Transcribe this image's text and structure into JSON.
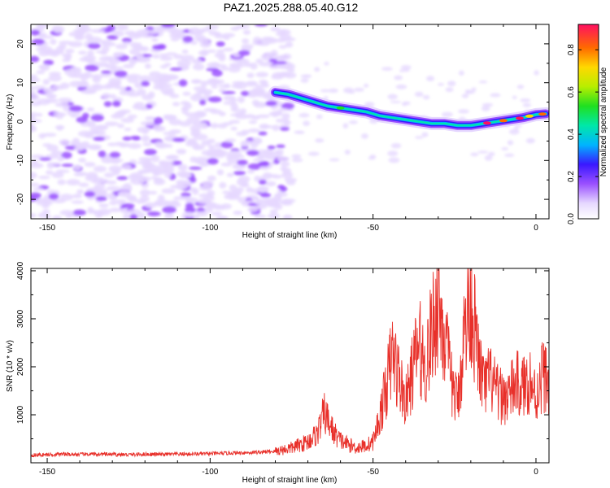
{
  "title": "PAZ1.2025.288.05.40.G12",
  "chart_data": [
    {
      "type": "heatmap",
      "xlabel": "Height of straight line (km)",
      "ylabel": "Frequency (Hz)",
      "xlim": [
        -155,
        4
      ],
      "ylim": [
        -25,
        25
      ],
      "xticks": [
        -150,
        -100,
        -50,
        0
      ],
      "xtick_labels": [
        "-150",
        "-100",
        "-50",
        "0"
      ],
      "yticks": [
        -20,
        -10,
        0,
        10,
        20
      ],
      "ytick_labels": [
        "-20",
        "-10",
        "0",
        "10",
        "20"
      ],
      "colorbar": {
        "label": "Normalized spectral amplitude",
        "range": [
          0,
          0.92
        ],
        "ticks": [
          0,
          0.2,
          0.4,
          0.6,
          0.8
        ],
        "tick_labels": [
          "0.0",
          "0.2",
          "0.4",
          "0.6",
          "0.8"
        ]
      },
      "ridge": {
        "name": "signal ridge",
        "x": [
          -80,
          -76,
          -72,
          -68,
          -64,
          -60,
          -56,
          -52,
          -48,
          -44,
          -40,
          -36,
          -32,
          -28,
          -24,
          -20,
          -16,
          -12,
          -8,
          -4,
          0,
          3
        ],
        "y": [
          7.5,
          7,
          6,
          5,
          4,
          3.5,
          3,
          2.5,
          1.5,
          1,
          0.5,
          0,
          -0.5,
          -0.5,
          -1,
          -1,
          -0.5,
          0,
          0.5,
          1,
          1.8,
          2
        ]
      }
    },
    {
      "type": "line",
      "xlabel": "Height of straight line (km)",
      "ylabel": "SNR (10 * v/v)",
      "xlim": [
        -155,
        4
      ],
      "ylim": [
        0,
        4050
      ],
      "xticks": [
        -150,
        -100,
        -50,
        0
      ],
      "xtick_labels": [
        "-150",
        "-100",
        "-50",
        "0"
      ],
      "yticks": [
        1000,
        2000,
        3000,
        4000
      ],
      "ytick_labels": [
        "1000",
        "2000",
        "3000",
        "4000"
      ],
      "series": [
        {
          "name": "SNR",
          "color": "#e8302a",
          "x": [
            -155,
            -150,
            -145,
            -140,
            -135,
            -130,
            -125,
            -120,
            -115,
            -110,
            -105,
            -100,
            -95,
            -90,
            -85,
            -80,
            -75,
            -70,
            -67,
            -65,
            -62,
            -60,
            -57,
            -55,
            -52,
            -50,
            -48,
            -46,
            -44,
            -42,
            -40,
            -38,
            -36,
            -34,
            -32,
            -30,
            -28,
            -26,
            -24,
            -22,
            -20,
            -18,
            -16,
            -14,
            -12,
            -10,
            -8,
            -6,
            -4,
            -2,
            0,
            2,
            4
          ],
          "y": [
            150,
            160,
            170,
            165,
            170,
            165,
            160,
            170,
            165,
            170,
            175,
            180,
            190,
            200,
            210,
            230,
            300,
            420,
            600,
            1000,
            600,
            450,
            350,
            300,
            350,
            420,
            900,
            1500,
            2200,
            1700,
            1200,
            1800,
            2400,
            1900,
            2600,
            3300,
            2500,
            1600,
            1200,
            2600,
            3400,
            2200,
            1500,
            1700,
            1400,
            1300,
            1400,
            1600,
            1500,
            1700,
            1300,
            1800,
            1600
          ]
        }
      ]
    }
  ]
}
